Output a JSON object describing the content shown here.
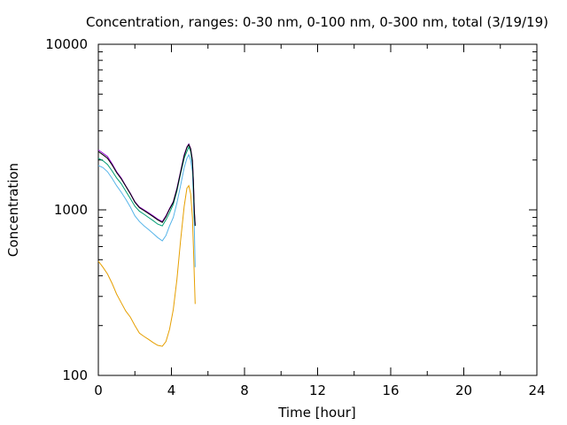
{
  "chart_data": {
    "type": "line",
    "title": "Concentration, ranges: 0-30 nm, 0-100 nm, 0-300 nm, total (3/19/19)",
    "xlabel": "Time [hour]",
    "ylabel": "Concentration",
    "xlim": [
      0,
      24
    ],
    "ylim": [
      100,
      10000
    ],
    "yscale": "log",
    "x_ticks": [
      0,
      4,
      8,
      12,
      16,
      20,
      24
    ],
    "x_tick_labels": [
      "0",
      "4",
      "8",
      "12",
      "16",
      "20",
      "24"
    ],
    "y_ticks": [
      100,
      1000,
      10000
    ],
    "y_tick_labels": [
      "100",
      "1000",
      "10000"
    ],
    "legend": "none",
    "grid": false,
    "series": [
      {
        "color": "#e69f00",
        "x": [
          0,
          0.25,
          0.5,
          0.75,
          1.0,
          1.25,
          1.5,
          1.75,
          2.0,
          2.25,
          2.5,
          2.75,
          3.0,
          3.25,
          3.5,
          3.7,
          3.9,
          4.1,
          4.3,
          4.5,
          4.7,
          4.85,
          4.95,
          5.05,
          5.15,
          5.2,
          5.25,
          5.3
        ],
        "values": [
          490,
          450,
          410,
          360,
          310,
          275,
          245,
          225,
          200,
          180,
          172,
          165,
          158,
          152,
          150,
          160,
          190,
          250,
          380,
          650,
          1050,
          1350,
          1400,
          1250,
          900,
          600,
          400,
          270
        ]
      },
      {
        "color": "#56b4e9",
        "x": [
          0,
          0.25,
          0.5,
          0.75,
          1.0,
          1.25,
          1.5,
          1.75,
          2.0,
          2.25,
          2.5,
          2.75,
          3.0,
          3.25,
          3.5,
          3.7,
          3.9,
          4.1,
          4.3,
          4.5,
          4.7,
          4.85,
          4.95,
          5.05,
          5.15,
          5.2,
          5.25,
          5.3
        ],
        "values": [
          1850,
          1800,
          1700,
          1550,
          1400,
          1280,
          1160,
          1040,
          920,
          850,
          800,
          760,
          720,
          680,
          650,
          700,
          800,
          900,
          1100,
          1400,
          1800,
          2050,
          2150,
          2000,
          1700,
          1200,
          800,
          450
        ]
      },
      {
        "color": "#009e73",
        "x": [
          0,
          0.25,
          0.5,
          0.75,
          1.0,
          1.25,
          1.5,
          1.75,
          2.0,
          2.25,
          2.5,
          2.75,
          3.0,
          3.25,
          3.5,
          3.7,
          3.9,
          4.1,
          4.3,
          4.5,
          4.7,
          4.85,
          4.95,
          5.05,
          5.15,
          5.2,
          5.25,
          5.3
        ],
        "values": [
          2050,
          1980,
          1880,
          1720,
          1560,
          1440,
          1300,
          1170,
          1050,
          980,
          940,
          900,
          860,
          820,
          800,
          870,
          960,
          1080,
          1300,
          1650,
          2050,
          2250,
          2400,
          2250,
          1900,
          1350,
          900,
          800
        ]
      },
      {
        "color": "#9400d3",
        "x": [
          0,
          0.25,
          0.5,
          0.75,
          1.0,
          1.25,
          1.5,
          1.75,
          2.0,
          2.25,
          2.5,
          2.75,
          3.0,
          3.25,
          3.5,
          3.7,
          3.9,
          4.1,
          4.3,
          4.5,
          4.7,
          4.85,
          4.95,
          5.05,
          5.15,
          5.2,
          5.25,
          5.3
        ],
        "values": [
          2300,
          2200,
          2100,
          1900,
          1700,
          1560,
          1400,
          1260,
          1120,
          1040,
          1000,
          960,
          920,
          880,
          850,
          920,
          1020,
          1120,
          1350,
          1700,
          2150,
          2400,
          2500,
          2350,
          2000,
          1500,
          1000,
          820
        ]
      },
      {
        "color": "#000000",
        "x": [
          0,
          0.25,
          0.5,
          0.75,
          1.0,
          1.25,
          1.5,
          1.75,
          2.0,
          2.25,
          2.5,
          2.75,
          3.0,
          3.25,
          3.5,
          3.7,
          3.9,
          4.1,
          4.3,
          4.5,
          4.7,
          4.85,
          4.95,
          5.05,
          5.15,
          5.2,
          5.25,
          5.3
        ],
        "values": [
          2250,
          2150,
          2050,
          1870,
          1680,
          1540,
          1390,
          1250,
          1110,
          1030,
          990,
          950,
          910,
          870,
          840,
          910,
          1010,
          1110,
          1330,
          1680,
          2120,
          2380,
          2480,
          2330,
          1980,
          1480,
          990,
          800
        ]
      }
    ]
  }
}
